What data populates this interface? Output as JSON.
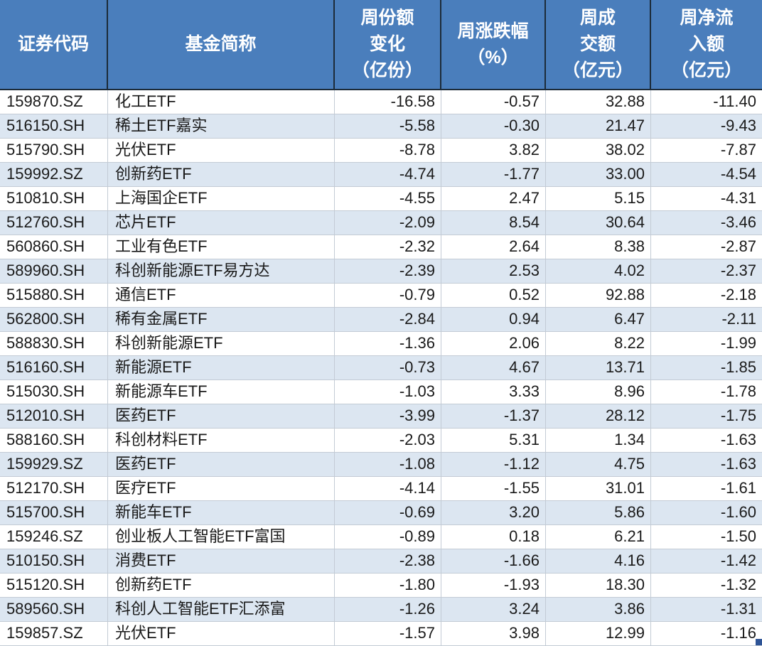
{
  "colors": {
    "header_bg": "#4a7ebc",
    "header_text": "#ffffff",
    "header_border": "#1c2b39",
    "band_bg": "#dce6f1",
    "grid_line": "#c3cbd5",
    "handle_color": "#2e5496"
  },
  "table": {
    "columns": [
      {
        "id": "code",
        "label": "证券代码"
      },
      {
        "id": "name",
        "label": "基金简称"
      },
      {
        "id": "share_change",
        "label": "周份额\n变化\n（亿份）"
      },
      {
        "id": "pct_change",
        "label": "周涨跌幅\n（%）"
      },
      {
        "id": "turnover",
        "label": "周成\n交额\n（亿元）"
      },
      {
        "id": "net_inflow",
        "label": "周净流\n入额\n（亿元）"
      }
    ],
    "rows": [
      [
        "159870.SZ",
        "化工ETF",
        "-16.58",
        "-0.57",
        "32.88",
        "-11.40"
      ],
      [
        "516150.SH",
        "稀土ETF嘉实",
        "-5.58",
        "-0.30",
        "21.47",
        "-9.43"
      ],
      [
        "515790.SH",
        "光伏ETF",
        "-8.78",
        "3.82",
        "38.02",
        "-7.87"
      ],
      [
        "159992.SZ",
        "创新药ETF",
        "-4.74",
        "-1.77",
        "33.00",
        "-4.54"
      ],
      [
        "510810.SH",
        "上海国企ETF",
        "-4.55",
        "2.47",
        "5.15",
        "-4.31"
      ],
      [
        "512760.SH",
        "芯片ETF",
        "-2.09",
        "8.54",
        "30.64",
        "-3.46"
      ],
      [
        "560860.SH",
        "工业有色ETF",
        "-2.32",
        "2.64",
        "8.38",
        "-2.87"
      ],
      [
        "589960.SH",
        "科创新能源ETF易方达",
        "-2.39",
        "2.53",
        "4.02",
        "-2.37"
      ],
      [
        "515880.SH",
        "通信ETF",
        "-0.79",
        "0.52",
        "92.88",
        "-2.18"
      ],
      [
        "562800.SH",
        "稀有金属ETF",
        "-2.84",
        "0.94",
        "6.47",
        "-2.11"
      ],
      [
        "588830.SH",
        "科创新能源ETF",
        "-1.36",
        "2.06",
        "8.22",
        "-1.99"
      ],
      [
        "516160.SH",
        "新能源ETF",
        "-0.73",
        "4.67",
        "13.71",
        "-1.85"
      ],
      [
        "515030.SH",
        "新能源车ETF",
        "-1.03",
        "3.33",
        "8.96",
        "-1.78"
      ],
      [
        "512010.SH",
        "医药ETF",
        "-3.99",
        "-1.37",
        "28.12",
        "-1.75"
      ],
      [
        "588160.SH",
        "科创材料ETF",
        "-2.03",
        "5.31",
        "1.34",
        "-1.63"
      ],
      [
        "159929.SZ",
        "医药ETF",
        "-1.08",
        "-1.12",
        "4.75",
        "-1.63"
      ],
      [
        "512170.SH",
        "医疗ETF",
        "-4.14",
        "-1.55",
        "31.01",
        "-1.61"
      ],
      [
        "515700.SH",
        "新能车ETF",
        "-0.69",
        "3.20",
        "5.86",
        "-1.60"
      ],
      [
        "159246.SZ",
        "创业板人工智能ETF富国",
        "-0.89",
        "0.18",
        "6.21",
        "-1.50"
      ],
      [
        "510150.SH",
        "消费ETF",
        "-2.38",
        "-1.66",
        "4.16",
        "-1.42"
      ],
      [
        "515120.SH",
        "创新药ETF",
        "-1.80",
        "-1.93",
        "18.30",
        "-1.32"
      ],
      [
        "589560.SH",
        "科创人工智能ETF汇添富",
        "-1.26",
        "3.24",
        "3.86",
        "-1.31"
      ],
      [
        "159857.SZ",
        "光伏ETF",
        "-1.57",
        "3.98",
        "12.99",
        "-1.16"
      ]
    ]
  }
}
